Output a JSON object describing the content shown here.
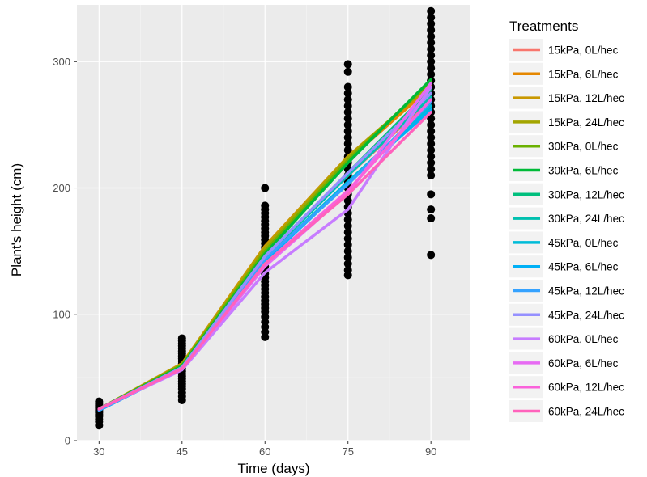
{
  "chart_data": {
    "type": "line",
    "title": "",
    "xlabel": "Time (days)",
    "ylabel": "Plant's height (cm)",
    "x": [
      30,
      45,
      60,
      75,
      90
    ],
    "xlim": [
      26,
      97
    ],
    "ylim": [
      0,
      345
    ],
    "x_ticks": [
      "30",
      "45",
      "60",
      "75",
      "90"
    ],
    "y_ticks": [
      "0",
      "100",
      "200",
      "300"
    ],
    "y_tick_values": [
      0,
      100,
      200,
      300
    ],
    "grid": true,
    "legend_title": "Treatments",
    "legend_position": "right",
    "series": [
      {
        "name": "15kPa, 0L/hec",
        "color": "#F8766D",
        "values": [
          25,
          58,
          146,
          210,
          270
        ]
      },
      {
        "name": "15kPa, 6L/hec",
        "color": "#E58700",
        "values": [
          25,
          60,
          152,
          222,
          280
        ]
      },
      {
        "name": "15kPa, 12L/hec",
        "color": "#C99800",
        "values": [
          25,
          61,
          154,
          225,
          282
        ]
      },
      {
        "name": "15kPa, 24L/hec",
        "color": "#A3A500",
        "values": [
          25,
          60,
          152,
          224,
          283
        ]
      },
      {
        "name": "30kPa, 0L/hec",
        "color": "#6BB100",
        "values": [
          25,
          60,
          150,
          222,
          285
        ]
      },
      {
        "name": "30kPa, 6L/hec",
        "color": "#00BA38",
        "values": [
          25,
          59,
          148,
          220,
          286
        ]
      },
      {
        "name": "30kPa, 12L/hec",
        "color": "#00BF7D",
        "values": [
          25,
          58,
          146,
          212,
          278
        ]
      },
      {
        "name": "30kPa, 24L/hec",
        "color": "#00C0AF",
        "values": [
          25,
          58,
          145,
          210,
          272
        ]
      },
      {
        "name": "45kPa, 0L/hec",
        "color": "#00BCD8",
        "values": [
          24,
          57,
          143,
          205,
          265
        ]
      },
      {
        "name": "45kPa, 6L/hec",
        "color": "#00B0F6",
        "values": [
          24,
          57,
          142,
          204,
          262
        ]
      },
      {
        "name": "45kPa, 12L/hec",
        "color": "#35A2FF",
        "values": [
          24,
          57,
          144,
          203,
          268
        ]
      },
      {
        "name": "45kPa, 24L/hec",
        "color": "#9590FF",
        "values": [
          25,
          58,
          146,
          212,
          275
        ]
      },
      {
        "name": "60kPa, 0L/hec",
        "color": "#C77CFF",
        "values": [
          25,
          56,
          133,
          183,
          280
        ]
      },
      {
        "name": "60kPa, 6L/hec",
        "color": "#E76BF3",
        "values": [
          25,
          57,
          138,
          196,
          283
        ]
      },
      {
        "name": "60kPa, 12L/hec",
        "color": "#FA62DB",
        "values": [
          25,
          57,
          140,
          198,
          270
        ]
      },
      {
        "name": "60kPa, 24L/hec",
        "color": "#FF62BC",
        "values": [
          25,
          57,
          140,
          195,
          260
        ]
      }
    ],
    "observations": [
      {
        "x": 30,
        "y": [
          12,
          15,
          17,
          19,
          20,
          21,
          22,
          23,
          24,
          25,
          26,
          27,
          28,
          29,
          30,
          31
        ]
      },
      {
        "x": 45,
        "y": [
          32,
          35,
          38,
          41,
          43,
          45,
          47,
          49,
          51,
          53,
          55,
          57,
          59,
          61,
          63,
          65,
          67,
          69,
          71,
          73,
          75,
          77,
          79,
          81
        ]
      },
      {
        "x": 60,
        "y": [
          82,
          86,
          90,
          94,
          98,
          102,
          105,
          108,
          111,
          114,
          117,
          120,
          123,
          126,
          129,
          132,
          135,
          138,
          141,
          144,
          147,
          150,
          153,
          156,
          159,
          162,
          165,
          168,
          171,
          174,
          177,
          180,
          183,
          186,
          200
        ]
      },
      {
        "x": 75,
        "y": [
          131,
          135,
          140,
          145,
          150,
          155,
          160,
          165,
          170,
          175,
          180,
          185,
          190,
          195,
          200,
          205,
          210,
          215,
          220,
          225,
          230,
          235,
          240,
          245,
          250,
          255,
          260,
          265,
          270,
          275,
          280,
          292,
          298
        ]
      },
      {
        "x": 90,
        "y": [
          147,
          176,
          183,
          195,
          210,
          215,
          220,
          225,
          230,
          235,
          240,
          245,
          250,
          255,
          260,
          265,
          270,
          275,
          280,
          285,
          290,
          295,
          300,
          305,
          310,
          315,
          320,
          325,
          330,
          335,
          340
        ]
      }
    ]
  }
}
